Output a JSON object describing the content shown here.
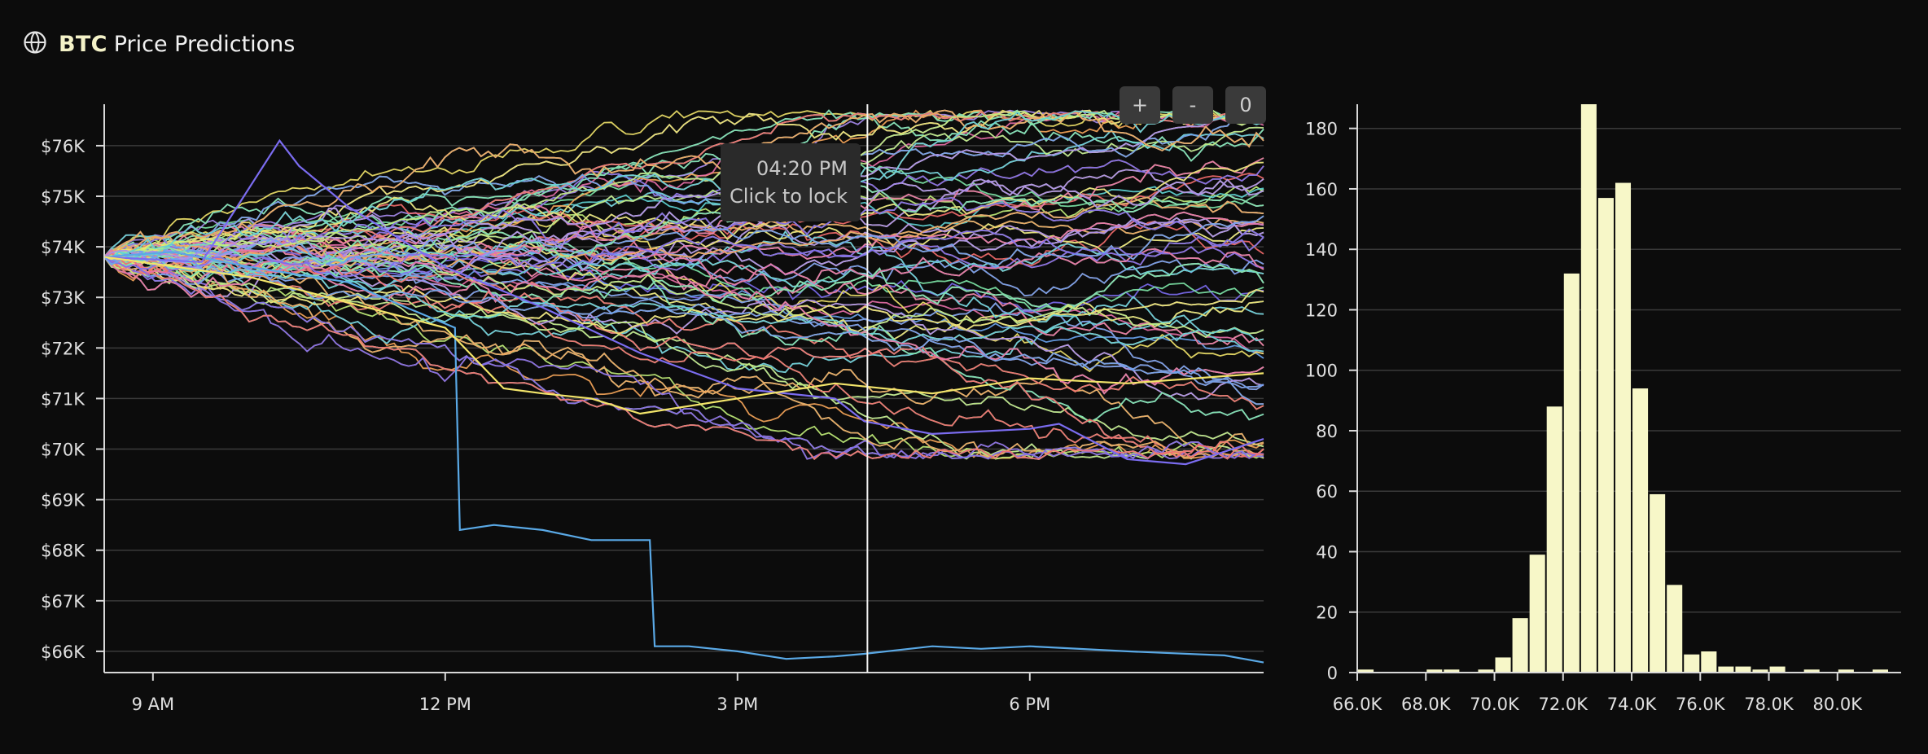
{
  "header": {
    "logo_icon": "globe-icon",
    "brand": "BTC",
    "title": "Price Predictions"
  },
  "controls": {
    "zoom_in_label": "+",
    "zoom_out_label": "-",
    "reset_label": "0"
  },
  "tooltip": {
    "time": "04:20 PM",
    "hint": "Click to lock"
  },
  "chart_data": [
    {
      "type": "line",
      "description_series_count": "Monte Carlo simulated BTC price paths",
      "xlabel": "",
      "ylabel": "",
      "x_ticks": [
        "9 AM",
        "12 PM",
        "3 PM",
        "6 PM"
      ],
      "x_range_hours": [
        8.5,
        20.4
      ],
      "y_ticks": [
        "$66K",
        "$67K",
        "$68K",
        "$69K",
        "$70K",
        "$71K",
        "$72K",
        "$73K",
        "$74K",
        "$75K",
        "$76K"
      ],
      "y_tick_values": [
        66000,
        67000,
        68000,
        69000,
        70000,
        71000,
        72000,
        73000,
        74000,
        75000,
        76000
      ],
      "ylim": [
        65580,
        76820
      ],
      "start_price": 73800,
      "crosshair_time": "04:20 PM",
      "grid": "horizontal",
      "palette": [
        "#7ee8a8",
        "#c2f07a",
        "#f2e46a",
        "#f7a65a",
        "#f56d6d",
        "#e86fa8",
        "#a88cf0",
        "#7b6cf0",
        "#6aa4f0",
        "#5fd6d6"
      ],
      "highlighted_paths": [
        {
          "color": "#5aa9e6",
          "points": [
            [
              8.5,
              73800
            ],
            [
              9.2,
              73900
            ],
            [
              10,
              73600
            ],
            [
              11,
              73300
            ],
            [
              11.6,
              72800
            ],
            [
              12.1,
              72400
            ],
            [
              12.15,
              68400
            ],
            [
              12.5,
              68500
            ],
            [
              13,
              68400
            ],
            [
              13.5,
              68200
            ],
            [
              14.1,
              68200
            ],
            [
              14.15,
              66100
            ],
            [
              14.5,
              66100
            ],
            [
              15,
              66000
            ],
            [
              15.5,
              65850
            ],
            [
              16,
              65900
            ],
            [
              16.3,
              65950
            ],
            [
              17,
              66100
            ],
            [
              17.5,
              66050
            ],
            [
              18,
              66100
            ],
            [
              19,
              66000
            ],
            [
              20,
              65920
            ],
            [
              20.4,
              65780
            ]
          ]
        },
        {
          "color": "#7b6cf0",
          "points": [
            [
              8.5,
              73800
            ],
            [
              9.5,
              73700
            ],
            [
              10.3,
              76100
            ],
            [
              10.5,
              75600
            ],
            [
              11,
              74800
            ],
            [
              12,
              73600
            ],
            [
              13,
              72800
            ],
            [
              14,
              71900
            ],
            [
              15,
              71200
            ],
            [
              16,
              71000
            ],
            [
              16.3,
              70550
            ],
            [
              17,
              70300
            ],
            [
              18,
              70400
            ],
            [
              18.3,
              70500
            ],
            [
              19,
              69800
            ],
            [
              19.6,
              69700
            ],
            [
              20.4,
              70200
            ]
          ]
        },
        {
          "color": "#f2e46a",
          "points": [
            [
              8.5,
              73800
            ],
            [
              10,
              73400
            ],
            [
              11,
              72900
            ],
            [
              12,
              72400
            ],
            [
              12.6,
              71200
            ],
            [
              13,
              71100
            ],
            [
              13.5,
              71000
            ],
            [
              14,
              70700
            ],
            [
              15,
              71000
            ],
            [
              16,
              71300
            ],
            [
              17,
              71100
            ],
            [
              18,
              71400
            ],
            [
              19,
              71300
            ],
            [
              20.4,
              71500
            ]
          ]
        }
      ],
      "background_path_count": 150
    },
    {
      "type": "bar",
      "title": "",
      "xlabel": "",
      "ylabel": "",
      "x_ticks": [
        "66.0K",
        "68.0K",
        "70.0K",
        "72.0K",
        "74.0K",
        "76.0K",
        "78.0K",
        "80.0K"
      ],
      "x_tick_values": [
        66000,
        68000,
        70000,
        72000,
        74000,
        76000,
        78000,
        80000
      ],
      "y_ticks": [
        0,
        20,
        40,
        60,
        80,
        100,
        120,
        140,
        160,
        180
      ],
      "ylim": [
        0,
        188
      ],
      "xlim": [
        66000,
        81500
      ],
      "bin_width": 500,
      "bin_starts": [
        66000,
        66500,
        67000,
        67500,
        68000,
        68500,
        69000,
        69500,
        70000,
        70500,
        71000,
        71500,
        72000,
        72500,
        73000,
        73500,
        74000,
        74500,
        75000,
        75500,
        76000,
        76500,
        77000,
        77500,
        78000,
        78500,
        79000,
        79500,
        80000,
        80500,
        81000
      ],
      "values": [
        1,
        0,
        0,
        0,
        1,
        1,
        0,
        1,
        5,
        18,
        39,
        88,
        132,
        188,
        157,
        162,
        94,
        59,
        29,
        6,
        7,
        2,
        2,
        1,
        2,
        0,
        1,
        0,
        1,
        0,
        1
      ],
      "bar_color": "#f7f7c8",
      "grid": "horizontal"
    }
  ]
}
